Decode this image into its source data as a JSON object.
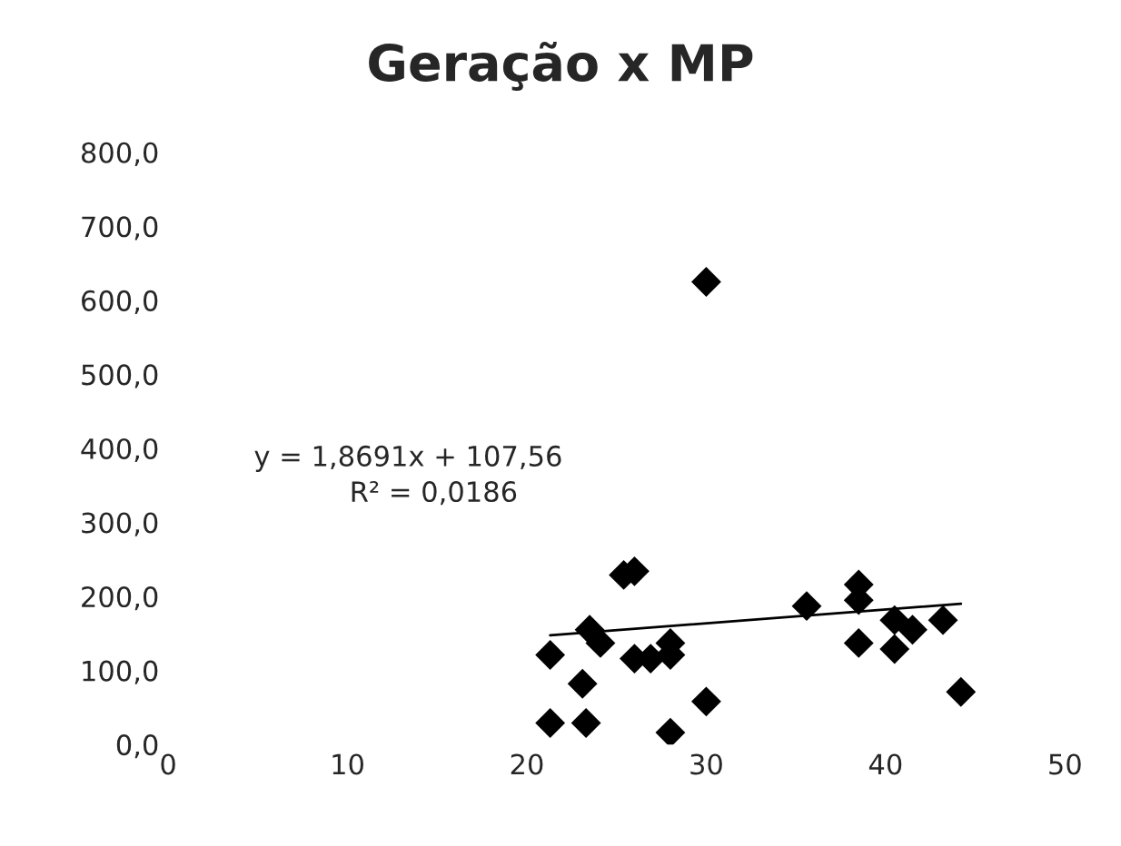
{
  "chart_data": {
    "type": "scatter",
    "title": "Geração x MP",
    "marker": "diamond",
    "grid": false,
    "legend": false,
    "series": [
      {
        "color": "#000000",
        "x": [
          21.3,
          21.3,
          23.3,
          25.4,
          26,
          23.5,
          24.1,
          23.1,
          26,
          26.9,
          28,
          28,
          30,
          28,
          30,
          35.6,
          38.5,
          38.5,
          38.5,
          40.5,
          41.5,
          40.5,
          43.2,
          44.2
        ],
        "values": [
          121,
          29,
          29,
          229,
          234,
          155,
          137,
          82,
          116,
          116,
          137,
          121,
          58,
          16,
          625,
          187,
          216,
          195,
          137,
          168,
          155,
          129,
          168,
          71
        ]
      },
      {
        "type": "line",
        "color": "#000000",
        "x": [
          21.3,
          44.2
        ],
        "values": [
          147.4,
          190.2
        ],
        "marker": "none"
      }
    ],
    "xlim": [
      0,
      50
    ],
    "xticks": [
      0,
      10,
      20,
      30,
      40,
      50
    ],
    "ylim": [
      0,
      800
    ],
    "yticks": [
      {
        "value": 0,
        "label": "0,0"
      },
      {
        "value": 100,
        "label": "100,0"
      },
      {
        "value": 200,
        "label": "200,0"
      },
      {
        "value": 300,
        "label": "300,0"
      },
      {
        "value": 400,
        "label": "400,0"
      },
      {
        "value": 500,
        "label": "500,0"
      },
      {
        "value": 600,
        "label": "600,0"
      },
      {
        "value": 700,
        "label": "700,0"
      },
      {
        "value": 800,
        "label": "800,0"
      }
    ],
    "annotations": [
      "y = 1,8691x + 107,56",
      "R² = 0,0186"
    ]
  }
}
